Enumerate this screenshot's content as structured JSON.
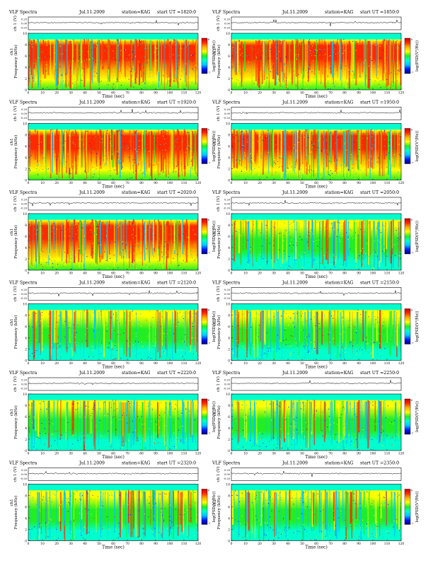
{
  "page": {
    "header_title": "VLF Spectra",
    "station_label": "station=KAG",
    "date_label_left": "Jul.11.2009",
    "date_label_right": "Jul.11.2009"
  },
  "colors": {
    "scale": [
      "#00007a",
      "#0018ff",
      "#00c8ff",
      "#00ffcc",
      "#22ee22",
      "#ffff00",
      "#ffb000",
      "#ff2a00",
      "#cc0000"
    ],
    "trace": "#000000",
    "frame": "#000000"
  },
  "chart_data": [
    {
      "type": "heatmap",
      "title": "VLF Spectra",
      "date": "Jul.11.2009",
      "station": "station=KAG",
      "start": "start UT =1820:0",
      "column": "left",
      "row": 0,
      "intensity": 0.86,
      "xlabel": "Time (sec)",
      "ylabel": "Frequency (kHz)",
      "ylabel_ch": "ch1",
      "trace_label": "ch 1 (V)",
      "colorbar_label": "log(PSD(V²/Hz))",
      "xlim": [
        0,
        120
      ],
      "ylim": [
        0,
        10
      ],
      "xticks": [
        0,
        10,
        20,
        30,
        40,
        50,
        60,
        70,
        80,
        90,
        100,
        110,
        120
      ],
      "yticks": [
        0,
        2,
        4,
        6,
        8,
        10
      ],
      "trace_ticks": [
        "0.20",
        "0.00",
        "-0.20"
      ],
      "cb_ticks": [
        "6",
        "-7"
      ]
    },
    {
      "type": "heatmap",
      "title": "VLF Spectra",
      "date": "Jul.11.2009",
      "station": "station=KAG",
      "start": "start UT =1850:0",
      "column": "right",
      "row": 0,
      "intensity": 0.83,
      "xlabel": "Time (sec)",
      "ylabel": "Frequency (kHz)",
      "ylabel_ch": "ch1",
      "trace_label": "ch 1 (V)",
      "colorbar_label": "log(PSD(V²/Hz))",
      "xlim": [
        0,
        120
      ],
      "ylim": [
        0,
        10
      ],
      "xticks": [
        0,
        10,
        20,
        30,
        40,
        50,
        60,
        70,
        80,
        90,
        100,
        110,
        120
      ],
      "yticks": [
        0,
        2,
        4,
        6,
        8,
        10
      ],
      "trace_ticks": [
        "0.20",
        "0.00",
        "-0.20"
      ],
      "cb_ticks": [
        "6",
        "-7"
      ]
    },
    {
      "type": "heatmap",
      "title": "VLF Spectra",
      "date": "Jul.11.2009",
      "station": "station=KAG",
      "start": "start UT =1920:0",
      "column": "left",
      "row": 1,
      "intensity": 0.92,
      "xlabel": "Time (sec)",
      "ylabel": "Frequency (kHz)",
      "ylabel_ch": "ch1",
      "trace_label": "ch 1 (V)",
      "colorbar_label": "log(PSD(V²/Hz))",
      "xlim": [
        0,
        120
      ],
      "ylim": [
        0,
        10
      ],
      "xticks": [
        0,
        10,
        20,
        30,
        40,
        50,
        60,
        70,
        80,
        90,
        100,
        110,
        120
      ],
      "yticks": [
        0,
        2,
        4,
        6,
        8,
        10
      ],
      "trace_ticks": [
        "0.20",
        "0.00",
        "-0.20"
      ],
      "cb_ticks": [
        "6",
        "-7"
      ]
    },
    {
      "type": "heatmap",
      "title": "VLF Spectra",
      "date": "Jul.11.2009",
      "station": "station=KAG",
      "start": "start UT =1950:0",
      "column": "right",
      "row": 1,
      "intensity": 0.9,
      "xlabel": "Time (sec)",
      "ylabel": "Frequency (kHz)",
      "ylabel_ch": "ch1",
      "trace_label": "ch 1 (V)",
      "colorbar_label": "log(PSD(V²/Hz))",
      "xlim": [
        0,
        120
      ],
      "ylim": [
        0,
        10
      ],
      "xticks": [
        0,
        10,
        20,
        30,
        40,
        50,
        60,
        70,
        80,
        90,
        100,
        110,
        120
      ],
      "yticks": [
        0,
        2,
        4,
        6,
        8,
        10
      ],
      "trace_ticks": [
        "0.20",
        "0.00",
        "-0.20"
      ],
      "cb_ticks": [
        "6",
        "-7"
      ]
    },
    {
      "type": "heatmap",
      "title": "VLF Spectra",
      "date": "Jul.11.2009",
      "station": "station=KAG",
      "start": "start UT =2020:0",
      "column": "left",
      "row": 2,
      "intensity": 0.7,
      "xlabel": "Time (sec)",
      "ylabel": "Frequency (kHz)",
      "ylabel_ch": "ch1",
      "trace_label": "ch 1 (V)",
      "colorbar_label": "log(PSD(V²/Hz))",
      "xlim": [
        0,
        120
      ],
      "ylim": [
        0,
        10
      ],
      "xticks": [
        0,
        10,
        20,
        30,
        40,
        50,
        60,
        70,
        80,
        90,
        100,
        110,
        120
      ],
      "yticks": [
        0,
        2,
        4,
        6,
        8,
        10
      ],
      "trace_ticks": [
        "0.20",
        "0.00",
        "-0.20"
      ],
      "cb_ticks": [
        "6",
        "-7"
      ]
    },
    {
      "type": "heatmap",
      "title": "VLF Spectra",
      "date": "Jul.11.2009",
      "station": "station=KAG",
      "start": "start UT =2050:0",
      "column": "right",
      "row": 2,
      "intensity": 0.6,
      "xlabel": "Time (sec)",
      "ylabel": "Frequency (kHz)",
      "ylabel_ch": "ch1",
      "trace_label": "ch 1 (V)",
      "colorbar_label": "log(PSD(V²/Hz))",
      "xlim": [
        0,
        120
      ],
      "ylim": [
        0,
        10
      ],
      "xticks": [
        0,
        10,
        20,
        30,
        40,
        50,
        60,
        70,
        80,
        90,
        100,
        110,
        120
      ],
      "yticks": [
        0,
        2,
        4,
        6,
        8,
        10
      ],
      "trace_ticks": [
        "0.20",
        "0.00",
        "-0.20"
      ],
      "cb_ticks": [
        "6",
        "-7"
      ]
    },
    {
      "type": "heatmap",
      "title": "VLF Spectra",
      "date": "Jul.11.2009",
      "station": "station=KAG",
      "start": "start UT =2120:0",
      "column": "left",
      "row": 3,
      "intensity": 0.45,
      "xlabel": "Time (sec)",
      "ylabel": "Frequency (kHz)",
      "ylabel_ch": "ch1",
      "trace_label": "ch 1 (V)",
      "colorbar_label": "log(PSD(V²/Hz))",
      "xlim": [
        0,
        120
      ],
      "ylim": [
        0,
        10
      ],
      "xticks": [
        0,
        10,
        20,
        30,
        40,
        50,
        60,
        70,
        80,
        90,
        100,
        110,
        120
      ],
      "yticks": [
        0,
        2,
        4,
        6,
        8,
        10
      ],
      "trace_ticks": [
        "0.20",
        "0.00",
        "-0.20"
      ],
      "cb_ticks": [
        "6",
        "-7"
      ]
    },
    {
      "type": "heatmap",
      "title": "VLF Spectra",
      "date": "Jul.11.2009",
      "station": "station=KAG",
      "start": "start UT =2150:0",
      "column": "right",
      "row": 3,
      "intensity": 0.4,
      "xlabel": "Time (sec)",
      "ylabel": "Frequency (kHz)",
      "ylabel_ch": "ch1",
      "trace_label": "ch 1 (V)",
      "colorbar_label": "log(PSD(V²/Hz))",
      "xlim": [
        0,
        120
      ],
      "ylim": [
        0,
        10
      ],
      "xticks": [
        0,
        10,
        20,
        30,
        40,
        50,
        60,
        70,
        80,
        90,
        100,
        110,
        120
      ],
      "yticks": [
        0,
        2,
        4,
        6,
        8,
        10
      ],
      "trace_ticks": [
        "0.20",
        "0.00",
        "-0.20"
      ],
      "cb_ticks": [
        "6",
        "-7"
      ]
    },
    {
      "type": "heatmap",
      "title": "VLF Spectra",
      "date": "Jul.11.2009",
      "station": "station=KAG",
      "start": "start UT =2220:0",
      "column": "left",
      "row": 4,
      "intensity": 0.4,
      "xlabel": "Time (sec)",
      "ylabel": "Frequency (kHz)",
      "ylabel_ch": "ch1",
      "trace_label": "ch 1 (V)",
      "colorbar_label": "log(PSD(V²/Hz))",
      "xlim": [
        0,
        120
      ],
      "ylim": [
        0,
        10
      ],
      "xticks": [
        0,
        10,
        20,
        30,
        40,
        50,
        60,
        70,
        80,
        90,
        100,
        110,
        120
      ],
      "yticks": [
        0,
        2,
        4,
        6,
        8,
        10
      ],
      "trace_ticks": [
        "0.20",
        "0.00",
        "-0.20"
      ],
      "cb_ticks": [
        "6",
        "-7"
      ]
    },
    {
      "type": "heatmap",
      "title": "VLF Spectra",
      "date": "Jul.11.2009",
      "station": "station=KAG",
      "start": "start UT =2250:0",
      "column": "right",
      "row": 4,
      "intensity": 0.38,
      "xlabel": "Time (sec)",
      "ylabel": "Frequency (kHz)",
      "ylabel_ch": "ch1",
      "trace_label": "ch 1 (V)",
      "colorbar_label": "log(PSD(V²/Hz))",
      "xlim": [
        0,
        120
      ],
      "ylim": [
        0,
        10
      ],
      "xticks": [
        0,
        10,
        20,
        30,
        40,
        50,
        60,
        70,
        80,
        90,
        100,
        110,
        120
      ],
      "yticks": [
        0,
        2,
        4,
        6,
        8,
        10
      ],
      "trace_ticks": [
        "0.20",
        "0.00",
        "-0.20"
      ],
      "cb_ticks": [
        "6",
        "-7"
      ]
    },
    {
      "type": "heatmap",
      "title": "VLF Spectra",
      "date": "Jul.11.2009",
      "station": "station=KAG",
      "start": "start UT =2320:0",
      "column": "left",
      "row": 5,
      "intensity": 0.42,
      "xlabel": "Time (sec)",
      "ylabel": "Frequency (kHz)",
      "ylabel_ch": "ch1",
      "trace_label": "ch 1 (V)",
      "colorbar_label": "log(PSD(V²/Hz))",
      "xlim": [
        0,
        120
      ],
      "ylim": [
        0,
        10
      ],
      "xticks": [
        0,
        10,
        20,
        30,
        40,
        50,
        60,
        70,
        80,
        90,
        100,
        110,
        120
      ],
      "yticks": [
        0,
        2,
        4,
        6,
        8,
        10
      ],
      "trace_ticks": [
        "0.20",
        "0.00",
        "-0.20"
      ],
      "cb_ticks": [
        "6",
        "-7"
      ]
    },
    {
      "type": "heatmap",
      "title": "VLF Spectra",
      "date": "Jul.11.2009",
      "station": "station=KAG",
      "start": "start UT =2350:0",
      "column": "right",
      "row": 5,
      "intensity": 0.42,
      "xlabel": "Time (sec)",
      "ylabel": "Frequency (kHz)",
      "ylabel_ch": "ch1",
      "trace_label": "ch 1 (V)",
      "colorbar_label": "log(PSD(V²/Hz))",
      "xlim": [
        0,
        120
      ],
      "ylim": [
        0,
        10
      ],
      "xticks": [
        0,
        10,
        20,
        30,
        40,
        50,
        60,
        70,
        80,
        90,
        100,
        110,
        120
      ],
      "yticks": [
        0,
        2,
        4,
        6,
        8,
        10
      ],
      "trace_ticks": [
        "0.20",
        "0.00",
        "-0.20"
      ],
      "cb_ticks": [
        "6",
        "-7"
      ]
    }
  ]
}
